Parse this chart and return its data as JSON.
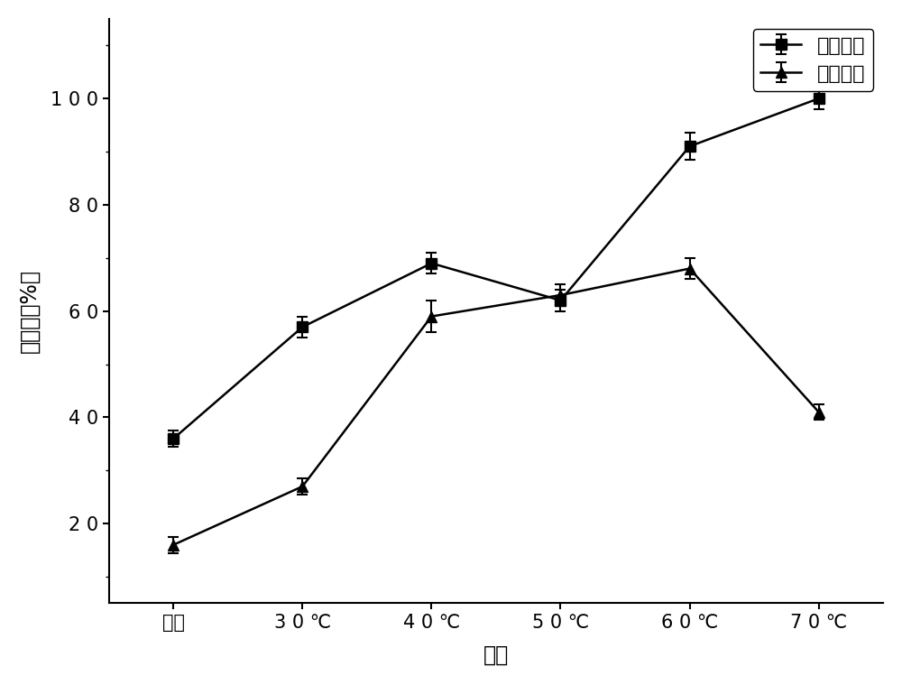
{
  "x_labels": [
    "室温",
    "3 0 ℃",
    "4 0 ℃",
    "5 0 ℃",
    "6 0 ℃",
    "7 0 ℃"
  ],
  "x_positions": [
    0,
    1,
    2,
    3,
    4,
    5
  ],
  "series1_name": "大豆苷元",
  "series1_y": [
    36,
    57,
    69,
    62,
    91,
    100
  ],
  "series1_yerr": [
    1.5,
    2.0,
    2.0,
    2.0,
    2.5,
    2.0
  ],
  "series2_name": "染料木素",
  "series2_y": [
    16,
    27,
    59,
    63,
    68,
    41
  ],
  "series2_yerr": [
    1.5,
    1.5,
    3.0,
    2.0,
    2.0,
    1.5
  ],
  "ylabel": "转化率（%）",
  "xlabel": "温度",
  "ytick_labels": [
    "2 0",
    "4 0",
    "6 0",
    "8 0",
    "1 0 0"
  ],
  "ytick_values": [
    20,
    40,
    60,
    80,
    100
  ],
  "ylim": [
    5,
    115
  ],
  "xlim": [
    -0.5,
    5.5
  ],
  "background_color": "#ffffff",
  "line_color": "#000000",
  "marker1": "s",
  "marker2": "^",
  "markersize": 9,
  "linewidth": 1.8,
  "legend_loc": "upper right",
  "font_size_ticks": 15,
  "font_size_labels": 17,
  "font_size_legend": 16
}
